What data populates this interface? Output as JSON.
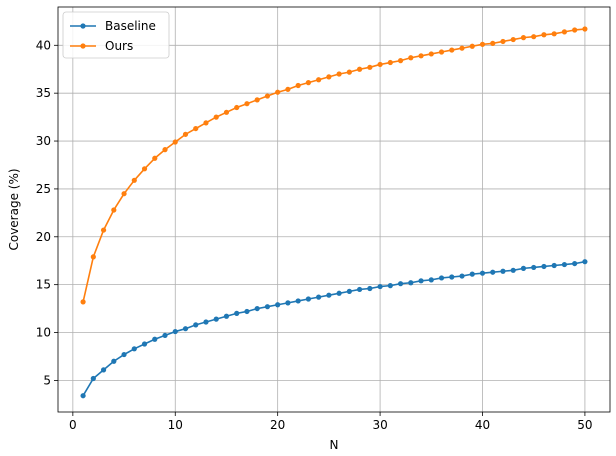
{
  "chart_data": {
    "type": "line",
    "xlabel": "N",
    "ylabel": "Coverage (%)",
    "xlim": [
      -1.45,
      52.45
    ],
    "ylim": [
      1.7,
      44.0
    ],
    "xticks": [
      0,
      10,
      20,
      30,
      40,
      50
    ],
    "yticks": [
      5,
      10,
      15,
      20,
      25,
      30,
      35,
      40
    ],
    "grid": true,
    "legend_position": "top-left",
    "x": [
      1,
      2,
      3,
      4,
      5,
      6,
      7,
      8,
      9,
      10,
      11,
      12,
      13,
      14,
      15,
      16,
      17,
      18,
      19,
      20,
      21,
      22,
      23,
      24,
      25,
      26,
      27,
      28,
      29,
      30,
      31,
      32,
      33,
      34,
      35,
      36,
      37,
      38,
      39,
      40,
      41,
      42,
      43,
      44,
      45,
      46,
      47,
      48,
      49,
      50
    ],
    "series": [
      {
        "name": "Baseline",
        "color": "#1f77b4",
        "values": [
          3.4,
          5.2,
          6.1,
          7.0,
          7.7,
          8.3,
          8.8,
          9.3,
          9.7,
          10.1,
          10.4,
          10.8,
          11.1,
          11.4,
          11.7,
          12.0,
          12.2,
          12.5,
          12.7,
          12.9,
          13.1,
          13.3,
          13.5,
          13.7,
          13.9,
          14.1,
          14.3,
          14.5,
          14.6,
          14.8,
          14.9,
          15.1,
          15.2,
          15.4,
          15.5,
          15.7,
          15.8,
          15.9,
          16.1,
          16.2,
          16.3,
          16.4,
          16.5,
          16.7,
          16.8,
          16.9,
          17.0,
          17.1,
          17.2,
          17.4
        ]
      },
      {
        "name": "Ours",
        "color": "#ff7f0e",
        "values": [
          13.2,
          17.9,
          20.7,
          22.8,
          24.5,
          25.9,
          27.1,
          28.2,
          29.1,
          29.9,
          30.7,
          31.3,
          31.9,
          32.5,
          33.0,
          33.5,
          33.9,
          34.3,
          34.7,
          35.1,
          35.4,
          35.8,
          36.1,
          36.4,
          36.7,
          37.0,
          37.2,
          37.5,
          37.7,
          38.0,
          38.2,
          38.4,
          38.7,
          38.9,
          39.1,
          39.3,
          39.5,
          39.7,
          39.9,
          40.1,
          40.2,
          40.4,
          40.6,
          40.8,
          40.9,
          41.1,
          41.2,
          41.4,
          41.6,
          41.7
        ]
      }
    ]
  }
}
